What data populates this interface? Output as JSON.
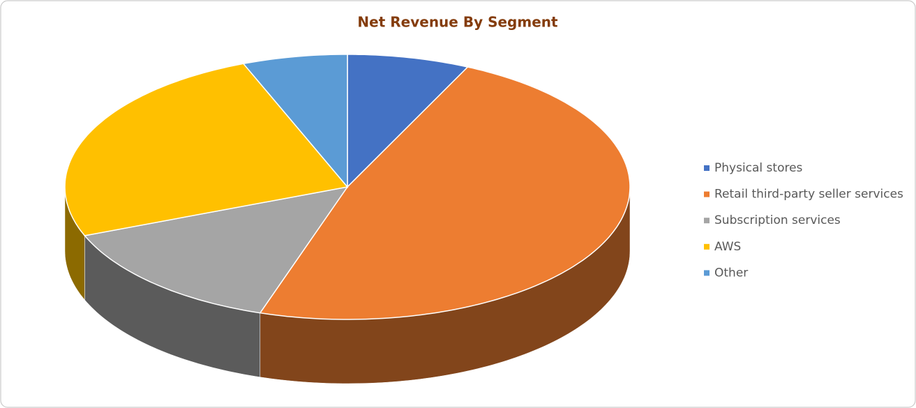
{
  "chart_data": {
    "type": "pie3d",
    "title": "Net Revenue By Segment",
    "categories": [
      "Physical stores",
      "Retail third-party seller services",
      "Subscription services",
      "AWS",
      "Other"
    ],
    "values": [
      7,
      48,
      14,
      25,
      6
    ],
    "colors": [
      "#4472c4",
      "#ed7d31",
      "#a5a5a5",
      "#ffc000",
      "#5b9bd5"
    ],
    "legend": "right"
  }
}
